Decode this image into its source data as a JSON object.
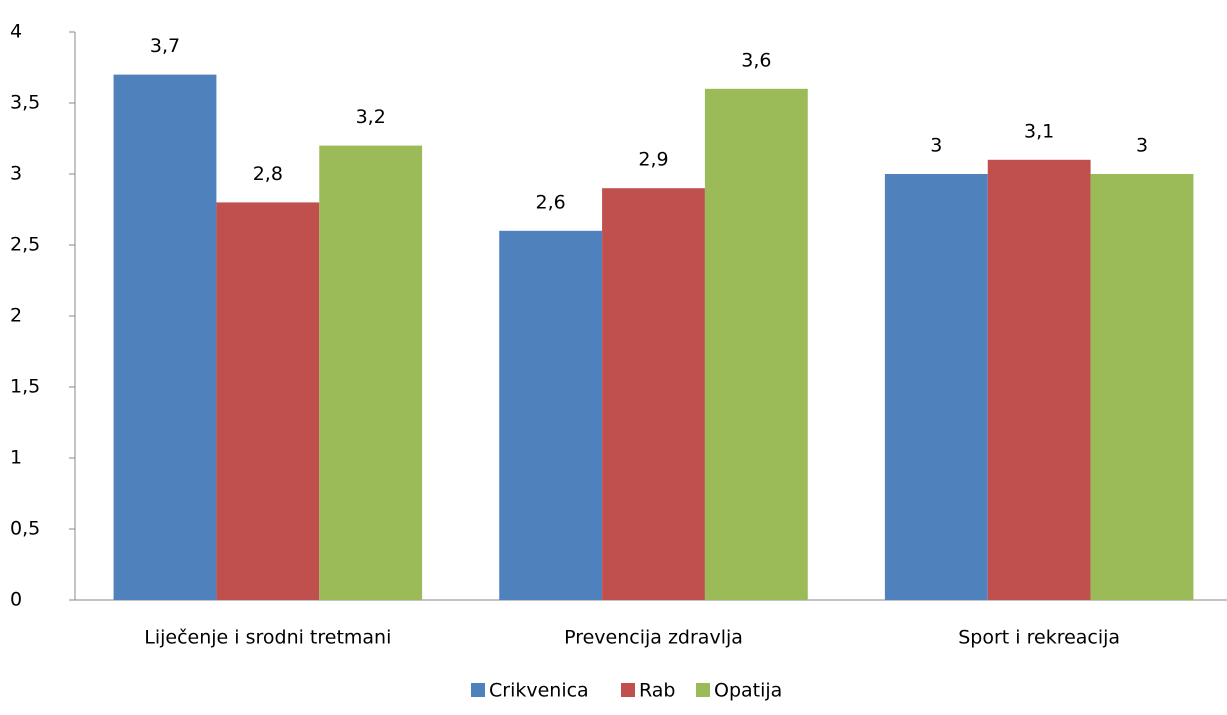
{
  "chart_data": {
    "type": "bar",
    "categories": [
      "Liječenje i srodni tretmani",
      "Prevencija zdravlja",
      "Sport i rekreacija"
    ],
    "series": [
      {
        "name": "Crikvenica",
        "color": "#4f81bd",
        "values": [
          3.7,
          2.6,
          3
        ],
        "value_labels": [
          "3,7",
          "2,6",
          "3"
        ]
      },
      {
        "name": "Rab",
        "color": "#c0504d",
        "values": [
          2.8,
          2.9,
          3.1
        ],
        "value_labels": [
          "2,8",
          "2,9",
          "3,1"
        ]
      },
      {
        "name": "Opatija",
        "color": "#9bbb59",
        "values": [
          3.2,
          3.6,
          3
        ],
        "value_labels": [
          "3,2",
          "3,6",
          "3"
        ]
      }
    ],
    "ylim": [
      0,
      4
    ],
    "yticks": [
      0,
      {
        "value": 0.5,
        "label": "0,5"
      },
      1,
      {
        "value": 1.5,
        "label": "1,5"
      },
      2,
      {
        "value": 2.5,
        "label": "2,5"
      },
      3,
      {
        "value": 3.5,
        "label": "3,5"
      },
      4
    ],
    "grid": false,
    "legend": "bottom"
  }
}
